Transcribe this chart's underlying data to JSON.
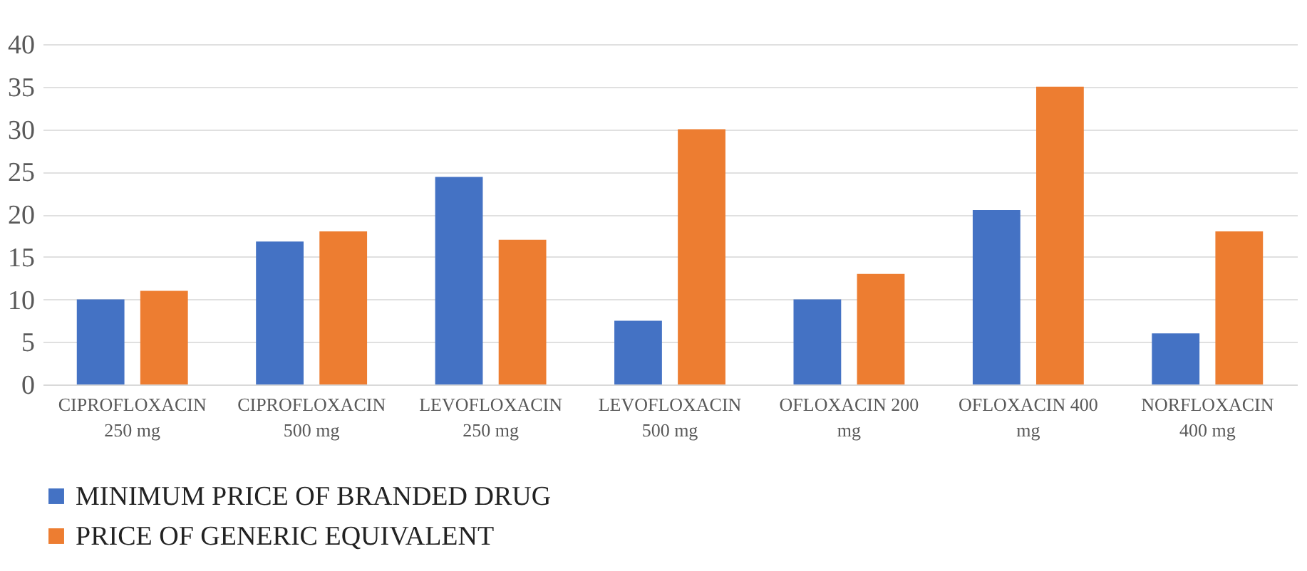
{
  "chart_data": {
    "type": "bar",
    "categories": [
      "CIPROFLOXACIN 250 mg",
      "CIPROFLOXACIN 500 mg",
      "LEVOFLOXACIN 250 mg",
      "LEVOFLOXACIN 500 mg",
      "OFLOXACIN 200 mg",
      "OFLOXACIN 400 mg",
      "NORFLOXACIN 400 mg"
    ],
    "series": [
      {
        "name": "MINIMUM PRICE OF BRANDED DRUG",
        "color": "#4472c4",
        "values": [
          10,
          16.8,
          24.4,
          7.5,
          10,
          20.5,
          6
        ]
      },
      {
        "name": "PRICE OF GENERIC EQUIVALENT",
        "color": "#ed7d31",
        "values": [
          11,
          18,
          17,
          30,
          13,
          35,
          18
        ]
      }
    ],
    "ylim": [
      0,
      40
    ],
    "yticks": [
      0,
      5,
      10,
      15,
      20,
      25,
      30,
      35,
      40
    ],
    "grid": "y",
    "legend": "bottom"
  }
}
